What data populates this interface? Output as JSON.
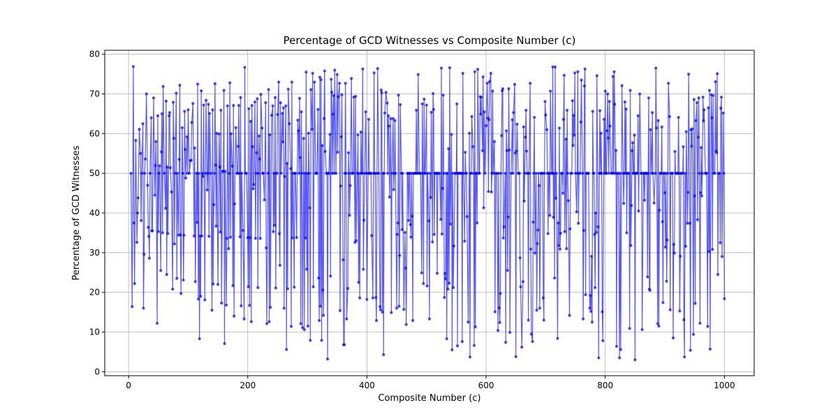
{
  "chart_data": {
    "type": "line",
    "title": "Percentage of GCD Witnesses vs Composite Number (c)",
    "xlabel": "Composite Number (c)",
    "ylabel": "Percentage of GCD Witnesses",
    "xlim": [
      -40,
      1050
    ],
    "ylim": [
      -1,
      81
    ],
    "xticks": [
      0,
      200,
      400,
      600,
      800,
      1000
    ],
    "yticks": [
      0,
      10,
      20,
      30,
      40,
      50,
      60,
      70,
      80
    ],
    "grid": true,
    "series": [
      {
        "color": "#0000ff",
        "marker": "circle",
        "x_range": [
          4,
          1000
        ],
        "x_rule": "composite integers from 4 to 1000",
        "values_estimated_pattern": "oscillates between about 3 and 77, many points at 50",
        "sample_points": [
          [
            4,
            50
          ],
          [
            9,
            37.5
          ],
          [
            10,
            22.2
          ],
          [
            12,
            58.3
          ],
          [
            15,
            40
          ],
          [
            16,
            43.8
          ],
          [
            18,
            61.1
          ],
          [
            20,
            55
          ],
          [
            21,
            38.1
          ],
          [
            22,
            50
          ],
          [
            24,
            62.5
          ],
          [
            25,
            16
          ],
          [
            26,
            29.6
          ],
          [
            28,
            53.6
          ],
          [
            30,
            70
          ],
          [
            32,
            47
          ],
          [
            33,
            36.4
          ],
          [
            35,
            28.6
          ],
          [
            36,
            50
          ],
          [
            38,
            64
          ],
          [
            40,
            35.5
          ],
          [
            42,
            69
          ],
          [
            44,
            44.5
          ],
          [
            45,
            52
          ],
          [
            46,
            58
          ],
          [
            48,
            12.2
          ],
          [
            49,
            64.5
          ],
          [
            50,
            35.3
          ],
          [
            51,
            50
          ],
          [
            52,
            51.9
          ],
          [
            54,
            25.5
          ],
          [
            55,
            55.4
          ],
          [
            56,
            65
          ],
          [
            57,
            35
          ],
          [
            58,
            71.9
          ],
          [
            60,
            50
          ],
          [
            62,
            41.2
          ],
          [
            63,
            68.2
          ],
          [
            64,
            24.5
          ],
          [
            65,
            51.6
          ],
          [
            66,
            34.8
          ],
          [
            68,
            64.5
          ],
          [
            69,
            65.3
          ],
          [
            70,
            51.4
          ],
          [
            72,
            45.3
          ],
          [
            74,
            20.8
          ],
          [
            75,
            67.9
          ],
          [
            76,
            58.8
          ],
          [
            77,
            32.2
          ],
          [
            78,
            50
          ],
          [
            80,
            70.2
          ],
          [
            81,
            23.5
          ],
          [
            82,
            50
          ],
          [
            84,
            34.4
          ],
          [
            85,
            53.5
          ],
          [
            86,
            72.2
          ],
          [
            87,
            34.5
          ],
          [
            88,
            19.7
          ],
          [
            90,
            61.5
          ],
          [
            91,
            50
          ],
          [
            92,
            23.1
          ],
          [
            93,
            34.4
          ],
          [
            94,
            65.6
          ],
          [
            95,
            56
          ],
          [
            96,
            48.8
          ],
          [
            98,
            59.2
          ],
          [
            99,
            50
          ],
          [
            100,
            66
          ],
          [
            102,
            50
          ],
          [
            104,
            53.2
          ],
          [
            105,
            53.3
          ],
          [
            106,
            62.8
          ],
          [
            108,
            67.6
          ],
          [
            110,
            34.2
          ],
          [
            111,
            56.4
          ],
          [
            112,
            22.7
          ],
          [
            114,
            50
          ],
          [
            115,
            37.6
          ],
          [
            116,
            72.5
          ],
          [
            117,
            18.3
          ],
          [
            118,
            50
          ],
          [
            119,
            8.3
          ],
          [
            120,
            34.2
          ],
          [
            121,
            19
          ],
          [
            122,
            70.8
          ],
          [
            123,
            34.2
          ],
          [
            124,
            50
          ],
          [
            125,
            49.2
          ],
          [
            126,
            67.2
          ],
          [
            128,
            18.1
          ],
          [
            129,
            50
          ],
          [
            130,
            68.4
          ],
          [
            132,
            45.8
          ],
          [
            133,
            50
          ],
          [
            134,
            67.4
          ],
          [
            135,
            34.1
          ],
          [
            136,
            65.1
          ],
          [
            138,
            50
          ],
          [
            140,
            15.5
          ],
          [
            141,
            66
          ],
          [
            142,
            22.1
          ],
          [
            143,
            42.1
          ],
          [
            144,
            50
          ],
          [
            145,
            72.6
          ],
          [
            146,
            52.1
          ],
          [
            147,
            36.7
          ],
          [
            148,
            60.1
          ],
          [
            150,
            22
          ],
          [
            152,
            59.9
          ],
          [
            153,
            51.6
          ],
          [
            154,
            35.2
          ],
          [
            155,
            65.9
          ],
          [
            156,
            17.3
          ],
          [
            158,
            50.5
          ],
          [
            159,
            50.5
          ],
          [
            160,
            70.9
          ],
          [
            161,
            7.1
          ],
          [
            162,
            50.5
          ],
          [
            164,
            16.8
          ],
          [
            165,
            33.6
          ],
          [
            166,
            67
          ],
          [
            168,
            31
          ],
          [
            169,
            50
          ],
          [
            170,
            72.8
          ],
          [
            171,
            33.9
          ],
          [
            172,
            60
          ],
          [
            174,
            51.8
          ],
          [
            175,
            21.7
          ],
          [
            176,
            67.1
          ],
          [
            177,
            14
          ],
          [
            178,
            42.3
          ],
          [
            180,
            61.5
          ],
          [
            182,
            50
          ],
          [
            183,
            50
          ],
          [
            184,
            56.8
          ],
          [
            185,
            67.1
          ],
          [
            186,
            50
          ],
          [
            187,
            34
          ],
          [
            188,
            69.1
          ],
          [
            189,
            16.6
          ],
          [
            190,
            50
          ],
          [
            192,
            35.6
          ],
          [
            194,
            13.3
          ],
          [
            195,
            76.7
          ],
          [
            196,
            50
          ],
          [
            198,
            50
          ],
          [
            200,
            33.8
          ],
          [
            201,
            21.4
          ],
          [
            202,
            66.3
          ],
          [
            203,
            16.7
          ],
          [
            204,
            33.8
          ],
          [
            205,
            63.1
          ],
          [
            206,
            12.6
          ],
          [
            207,
            67.1
          ],
          [
            208,
            56.7
          ],
          [
            209,
            46.1
          ],
          [
            210,
            47.2
          ],
          [
            212,
            68
          ],
          [
            213,
            33.6
          ],
          [
            214,
            50
          ],
          [
            215,
            55.2
          ],
          [
            216,
            68.8
          ],
          [
            217,
            21.2
          ],
          [
            218,
            50
          ],
          [
            219,
            59.4
          ],
          [
            220,
            53.6
          ],
          [
            221,
            33.6
          ],
          [
            222,
            69.9
          ],
          [
            224,
            61.4
          ],
          [
            225,
            50
          ],
          [
            226,
            50
          ],
          [
            228,
            43.3
          ],
          [
            230,
            67.8
          ],
          [
            231,
            31.2
          ],
          [
            232,
            12.1
          ],
          [
            234,
            50
          ],
          [
            235,
            71.1
          ],
          [
            236,
            12.6
          ],
          [
            237,
            59.7
          ],
          [
            238,
            16.2
          ],
          [
            240,
            64.6
          ],
          [
            242,
            67
          ],
          [
            243,
            35.3
          ],
          [
            244,
            50
          ],
          [
            245,
            36.9
          ],
          [
            246,
            69.1
          ],
          [
            247,
            21.1
          ],
          [
            248,
            50
          ],
          [
            249,
            50
          ],
          [
            250,
            64.8
          ],
          [
            252,
            73
          ],
          [
            253,
            34.8
          ],
          [
            254,
            26.8
          ],
          [
            255,
            67.8
          ],
          [
            256,
            50
          ],
          [
            258,
            65.1
          ],
          [
            259,
            57.9
          ],
          [
            260,
            66.5
          ],
          [
            261,
            16
          ],
          [
            262,
            49.2
          ],
          [
            264,
            67
          ],
          [
            265,
            5.6
          ],
          [
            266,
            52.5
          ],
          [
            267,
            20.9
          ],
          [
            268,
            71.2
          ],
          [
            270,
            62.5
          ],
          [
            272,
            51.2
          ],
          [
            273,
            11.4
          ],
          [
            274,
            73
          ],
          [
            275,
            33.7
          ],
          [
            276,
            50
          ],
          [
            278,
            21.3
          ],
          [
            279,
            50
          ],
          [
            280,
            50
          ],
          [
            282,
            33.8
          ],
          [
            284,
            63.4
          ],
          [
            285,
            60.7
          ],
          [
            286,
            50
          ],
          [
            287,
            68.9
          ],
          [
            288,
            54
          ],
          [
            289,
            12.1
          ],
          [
            290,
            65.5
          ],
          [
            291,
            50
          ],
          [
            292,
            11.1
          ],
          [
            294,
            58.8
          ],
          [
            295,
            10.6
          ],
          [
            296,
            50
          ],
          [
            297,
            33.7
          ],
          [
            298,
            75.5
          ],
          [
            299,
            25.8
          ]
        ]
      }
    ]
  }
}
